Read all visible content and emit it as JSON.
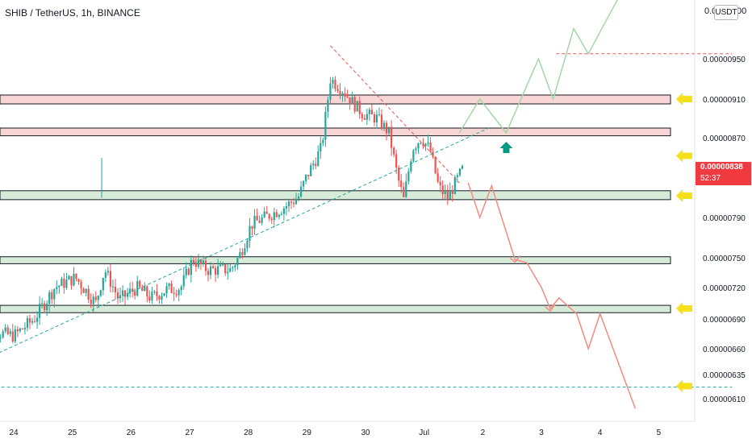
{
  "header": {
    "symbol_title": "SHIB / TetherUS, 1h, BINANCE"
  },
  "currency_badge": "USDT",
  "top_label_partial": "0.0",
  "top_label_suffix": "00",
  "current_price": {
    "value": "0.00000838",
    "countdown": "52:37"
  },
  "colors": {
    "bull": "#26a69a",
    "bear": "#ef5350",
    "resistance_zone": "#f9d6d6",
    "support_zone": "#d7ecd8",
    "projection_up": "#a5d6a7",
    "projection_down": "#f28b82",
    "marker": "#f5e11b",
    "arrow_up": "#089981"
  },
  "chart_data": {
    "type": "candlestick",
    "y_ticks": [
      "0.00000950",
      "0.00000910",
      "0.00000870",
      "0.00000838",
      "0.00000790",
      "0.00000750",
      "0.00000720",
      "0.00000690",
      "0.00000660",
      "0.00000635",
      "0.00000610"
    ],
    "x_ticks": [
      "24",
      "25",
      "26",
      "27",
      "28",
      "29",
      "30",
      "Jul",
      "2",
      "3",
      "4",
      "5"
    ],
    "zones": [
      {
        "kind": "resistance",
        "low": 9.05e-06,
        "high": 9.14e-06
      },
      {
        "kind": "resistance",
        "low": 8.72e-06,
        "high": 8.8e-06
      },
      {
        "kind": "support",
        "low": 8.08e-06,
        "high": 8.17e-06
      },
      {
        "kind": "support",
        "low": 7.44e-06,
        "high": 7.51e-06
      },
      {
        "kind": "support",
        "low": 6.96e-06,
        "high": 7.03e-06
      }
    ],
    "right_markers": [
      9.1e-06,
      8.52e-06,
      8.12e-06,
      7e-06,
      6.23e-06
    ],
    "dashed_levels": [
      {
        "price": 9.55e-06,
        "color": "bear",
        "from": "Jul 2.25",
        "to": "Jul 5.25"
      },
      {
        "price": 6.22e-06,
        "color": "bull",
        "from": "23.5",
        "to": "Jul 5.25"
      }
    ],
    "trendlines": [
      {
        "color": "bear",
        "points": [
          [
            29.4,
            9.63e-06
          ],
          [
            31.6,
            8.25e-06
          ]
        ]
      },
      {
        "color": "bull",
        "points": [
          [
            23.4,
            6.47e-06
          ],
          [
            32.1,
            8.8e-06
          ]
        ]
      }
    ],
    "projection_up": [
      [
        31.6,
        8.75e-06
      ],
      [
        31.95,
        9.1e-06
      ],
      [
        32.4,
        8.75e-06
      ],
      [
        32.95,
        9.5e-06
      ],
      [
        33.2,
        9.1e-06
      ],
      [
        33.55,
        9.8e-06
      ],
      [
        33.8,
        9.55e-06
      ],
      [
        34.4,
        1.02e-05
      ]
    ],
    "projection_down": [
      [
        31.75,
        8.25e-06
      ],
      [
        31.95,
        7.9e-06
      ],
      [
        32.15,
        8.22e-06
      ],
      [
        32.55,
        7.48e-06
      ],
      [
        32.75,
        7.45e-06
      ],
      [
        33.0,
        7.2e-06
      ],
      [
        33.15,
        7e-06
      ],
      [
        33.3,
        7.1e-06
      ],
      [
        33.6,
        6.95e-06
      ],
      [
        33.8,
        6.6e-06
      ],
      [
        34.0,
        6.95e-06
      ],
      [
        34.6,
        6e-06
      ]
    ],
    "arrow_up_at": [
      32.4,
      8.66e-06
    ],
    "candles_from": 23.4,
    "candles_to": 31.65,
    "path": [
      [
        23.4,
        6.8e-06
      ],
      [
        24.0,
        6.73e-06
      ],
      [
        24.35,
        6.9e-06
      ],
      [
        24.7,
        7.2e-06
      ],
      [
        25.05,
        7.3e-06
      ],
      [
        25.4,
        7.05e-06
      ],
      [
        25.55,
        7.38e-06
      ],
      [
        25.8,
        7.08e-06
      ],
      [
        26.1,
        7.2e-06
      ],
      [
        26.35,
        7.1e-06
      ],
      [
        26.6,
        7.18e-06
      ],
      [
        26.85,
        7.2e-06
      ],
      [
        27.05,
        7.48e-06
      ],
      [
        27.3,
        7.38e-06
      ],
      [
        27.7,
        7.38e-06
      ],
      [
        27.85,
        7.52e-06
      ],
      [
        28.05,
        7.83e-06
      ],
      [
        28.35,
        7.92e-06
      ],
      [
        28.6,
        8e-06
      ],
      [
        28.85,
        8.1e-06
      ],
      [
        29.0,
        8.32e-06
      ],
      [
        29.25,
        8.6e-06
      ],
      [
        29.4,
        9.3e-06
      ],
      [
        29.6,
        9.2e-06
      ],
      [
        29.8,
        9.05e-06
      ],
      [
        29.95,
        8.95e-06
      ],
      [
        30.2,
        8.9e-06
      ],
      [
        30.4,
        8.75e-06
      ],
      [
        30.55,
        8.3e-06
      ],
      [
        30.65,
        8.08e-06
      ],
      [
        30.8,
        8.6e-06
      ],
      [
        30.95,
        8.7e-06
      ],
      [
        31.1,
        8.58e-06
      ],
      [
        31.25,
        8.2e-06
      ],
      [
        31.4,
        8.1e-06
      ],
      [
        31.65,
        8.38e-06
      ]
    ]
  }
}
